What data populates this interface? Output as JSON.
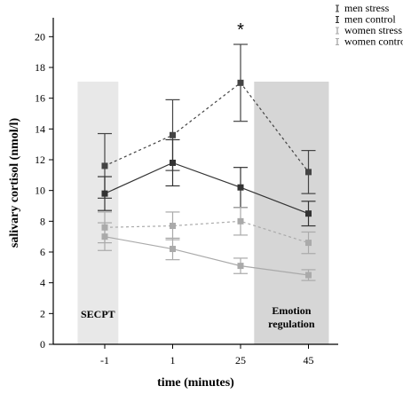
{
  "chart_data": {
    "type": "line",
    "title": "",
    "xlabel": "time (minutes)",
    "ylabel": "salivary cortisol (nmol/l)",
    "categories": [
      "-1",
      "1",
      "25",
      "45"
    ],
    "ylim": [
      0,
      21
    ],
    "yticks": [
      0,
      2,
      4,
      6,
      8,
      10,
      12,
      14,
      16,
      18,
      20
    ],
    "grid": false,
    "legend_position": "top-right",
    "series": [
      {
        "name": "men stress",
        "values": [
          11.6,
          13.6,
          17.0,
          11.2
        ],
        "errors": [
          2.1,
          2.3,
          2.5,
          1.4
        ],
        "color": "#444444",
        "dash": "3,3"
      },
      {
        "name": "men control",
        "values": [
          9.8,
          11.8,
          10.2,
          8.5
        ],
        "errors": [
          1.1,
          1.5,
          1.3,
          0.8
        ],
        "color": "#333333",
        "dash": ""
      },
      {
        "name": "women stress",
        "values": [
          7.6,
          7.7,
          8.0,
          6.6
        ],
        "errors": [
          1.0,
          0.9,
          0.9,
          0.7
        ],
        "color": "#aaaaaa",
        "dash": "3,3"
      },
      {
        "name": "women control",
        "values": [
          7.0,
          6.2,
          5.1,
          4.5
        ],
        "errors": [
          0.9,
          0.7,
          0.5,
          0.35
        ],
        "color": "#aaaaaa",
        "dash": ""
      }
    ],
    "shaded_regions": [
      {
        "label": "SECPT",
        "from": -0.4,
        "to": 0.2,
        "color": "#e8e8e8"
      },
      {
        "label": "Emotion regulation",
        "from": 2.2,
        "to": 3.3,
        "color": "#d6d6d6"
      }
    ],
    "annotations": [
      {
        "text": "*",
        "x_category": "25"
      }
    ]
  }
}
